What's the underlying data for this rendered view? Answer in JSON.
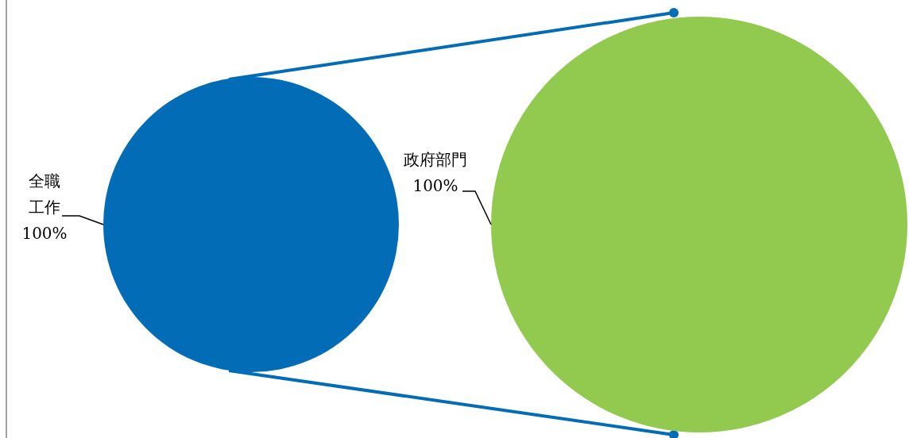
{
  "chart_data": [
    {
      "type": "pie",
      "categories": [
        "全職工作"
      ],
      "values": [
        100
      ],
      "colors": [
        "#026cb6"
      ],
      "value_labels": [
        "100%"
      ]
    },
    {
      "type": "pie",
      "categories": [
        "政府部門"
      ],
      "values": [
        100
      ],
      "colors": [
        "#92c94f"
      ],
      "value_labels": [
        "100%"
      ]
    }
  ]
}
